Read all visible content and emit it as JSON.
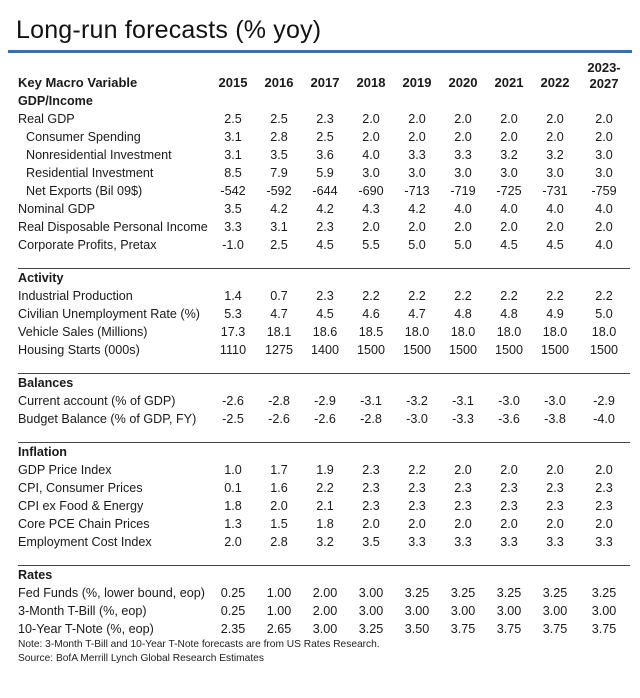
{
  "title": "Long-run forecasts (% yoy)",
  "columns": {
    "label": "Key Macro Variable",
    "years": [
      "2015",
      "2016",
      "2017",
      "2018",
      "2019",
      "2020",
      "2021",
      "2022"
    ],
    "last_line1": "2023-",
    "last_line2": "2027"
  },
  "sections": [
    {
      "name": "GDP/Income",
      "rows": [
        {
          "label": "Real GDP",
          "indent": false,
          "values": [
            "2.5",
            "2.5",
            "2.3",
            "2.0",
            "2.0",
            "2.0",
            "2.0",
            "2.0",
            "2.0"
          ]
        },
        {
          "label": "Consumer Spending",
          "indent": true,
          "values": [
            "3.1",
            "2.8",
            "2.5",
            "2.0",
            "2.0",
            "2.0",
            "2.0",
            "2.0",
            "2.0"
          ]
        },
        {
          "label": "Nonresidential Investment",
          "indent": true,
          "values": [
            "3.1",
            "3.5",
            "3.6",
            "4.0",
            "3.3",
            "3.3",
            "3.2",
            "3.2",
            "3.0"
          ]
        },
        {
          "label": "Residential Investment",
          "indent": true,
          "values": [
            "8.5",
            "7.9",
            "5.9",
            "3.0",
            "3.0",
            "3.0",
            "3.0",
            "3.0",
            "3.0"
          ]
        },
        {
          "label": "Net Exports (Bil 09$)",
          "indent": true,
          "values": [
            "-542",
            "-592",
            "-644",
            "-690",
            "-713",
            "-719",
            "-725",
            "-731",
            "-759"
          ]
        },
        {
          "label": "Nominal GDP",
          "indent": false,
          "values": [
            "3.5",
            "4.2",
            "4.2",
            "4.3",
            "4.2",
            "4.0",
            "4.0",
            "4.0",
            "4.0"
          ]
        },
        {
          "label": "Real Disposable Personal Income",
          "indent": false,
          "values": [
            "3.3",
            "3.1",
            "2.3",
            "2.0",
            "2.0",
            "2.0",
            "2.0",
            "2.0",
            "2.0"
          ]
        },
        {
          "label": "Corporate Profits, Pretax",
          "indent": false,
          "values": [
            "-1.0",
            "2.5",
            "4.5",
            "5.5",
            "5.0",
            "5.0",
            "4.5",
            "4.5",
            "4.0"
          ]
        }
      ]
    },
    {
      "name": "Activity",
      "rows": [
        {
          "label": "Industrial Production",
          "indent": false,
          "values": [
            "1.4",
            "0.7",
            "2.3",
            "2.2",
            "2.2",
            "2.2",
            "2.2",
            "2.2",
            "2.2"
          ]
        },
        {
          "label": "Civilian Unemployment Rate (%)",
          "indent": false,
          "values": [
            "5.3",
            "4.7",
            "4.5",
            "4.6",
            "4.7",
            "4.8",
            "4.8",
            "4.9",
            "5.0"
          ]
        },
        {
          "label": "Vehicle Sales (Millions)",
          "indent": false,
          "values": [
            "17.3",
            "18.1",
            "18.6",
            "18.5",
            "18.0",
            "18.0",
            "18.0",
            "18.0",
            "18.0"
          ]
        },
        {
          "label": "Housing Starts (000s)",
          "indent": false,
          "values": [
            "1110",
            "1275",
            "1400",
            "1500",
            "1500",
            "1500",
            "1500",
            "1500",
            "1500"
          ]
        }
      ]
    },
    {
      "name": "Balances",
      "rows": [
        {
          "label": "Current account (% of GDP)",
          "indent": false,
          "values": [
            "-2.6",
            "-2.8",
            "-2.9",
            "-3.1",
            "-3.2",
            "-3.1",
            "-3.0",
            "-3.0",
            "-2.9"
          ]
        },
        {
          "label": "Budget Balance (% of GDP, FY)",
          "indent": false,
          "values": [
            "-2.5",
            "-2.6",
            "-2.6",
            "-2.8",
            "-3.0",
            "-3.3",
            "-3.6",
            "-3.8",
            "-4.0"
          ]
        }
      ]
    },
    {
      "name": "Inflation",
      "rows": [
        {
          "label": "GDP Price Index",
          "indent": false,
          "values": [
            "1.0",
            "1.7",
            "1.9",
            "2.3",
            "2.2",
            "2.0",
            "2.0",
            "2.0",
            "2.0"
          ]
        },
        {
          "label": "CPI, Consumer Prices",
          "indent": false,
          "values": [
            "0.1",
            "1.6",
            "2.2",
            "2.3",
            "2.3",
            "2.3",
            "2.3",
            "2.3",
            "2.3"
          ]
        },
        {
          "label": "CPI ex Food & Energy",
          "indent": false,
          "values": [
            "1.8",
            "2.0",
            "2.1",
            "2.3",
            "2.3",
            "2.3",
            "2.3",
            "2.3",
            "2.3"
          ]
        },
        {
          "label": "Core PCE Chain Prices",
          "indent": false,
          "values": [
            "1.3",
            "1.5",
            "1.8",
            "2.0",
            "2.0",
            "2.0",
            "2.0",
            "2.0",
            "2.0"
          ]
        },
        {
          "label": "Employment Cost Index",
          "indent": false,
          "values": [
            "2.0",
            "2.8",
            "3.2",
            "3.5",
            "3.3",
            "3.3",
            "3.3",
            "3.3",
            "3.3"
          ]
        }
      ]
    },
    {
      "name": "Rates",
      "rows": [
        {
          "label": "Fed Funds (%, lower bound, eop)",
          "indent": false,
          "values": [
            "0.25",
            "1.00",
            "2.00",
            "3.00",
            "3.25",
            "3.25",
            "3.25",
            "3.25",
            "3.25"
          ]
        },
        {
          "label": "3-Month T-Bill (%, eop)",
          "indent": false,
          "values": [
            "0.25",
            "1.00",
            "2.00",
            "3.00",
            "3.00",
            "3.00",
            "3.00",
            "3.00",
            "3.00"
          ]
        },
        {
          "label": "10-Year T-Note (%, eop)",
          "indent": false,
          "values": [
            "2.35",
            "2.65",
            "3.00",
            "3.25",
            "3.50",
            "3.75",
            "3.75",
            "3.75",
            "3.75"
          ]
        }
      ]
    }
  ],
  "notes": {
    "note": "Note: 3-Month T-Bill and 10-Year T-Note forecasts are from US Rates Research.",
    "source": "Source: BofA Merrill Lynch Global Research Estimates"
  },
  "colors": {
    "accent": "#2f6fc4",
    "text": "#1a1a1a"
  }
}
